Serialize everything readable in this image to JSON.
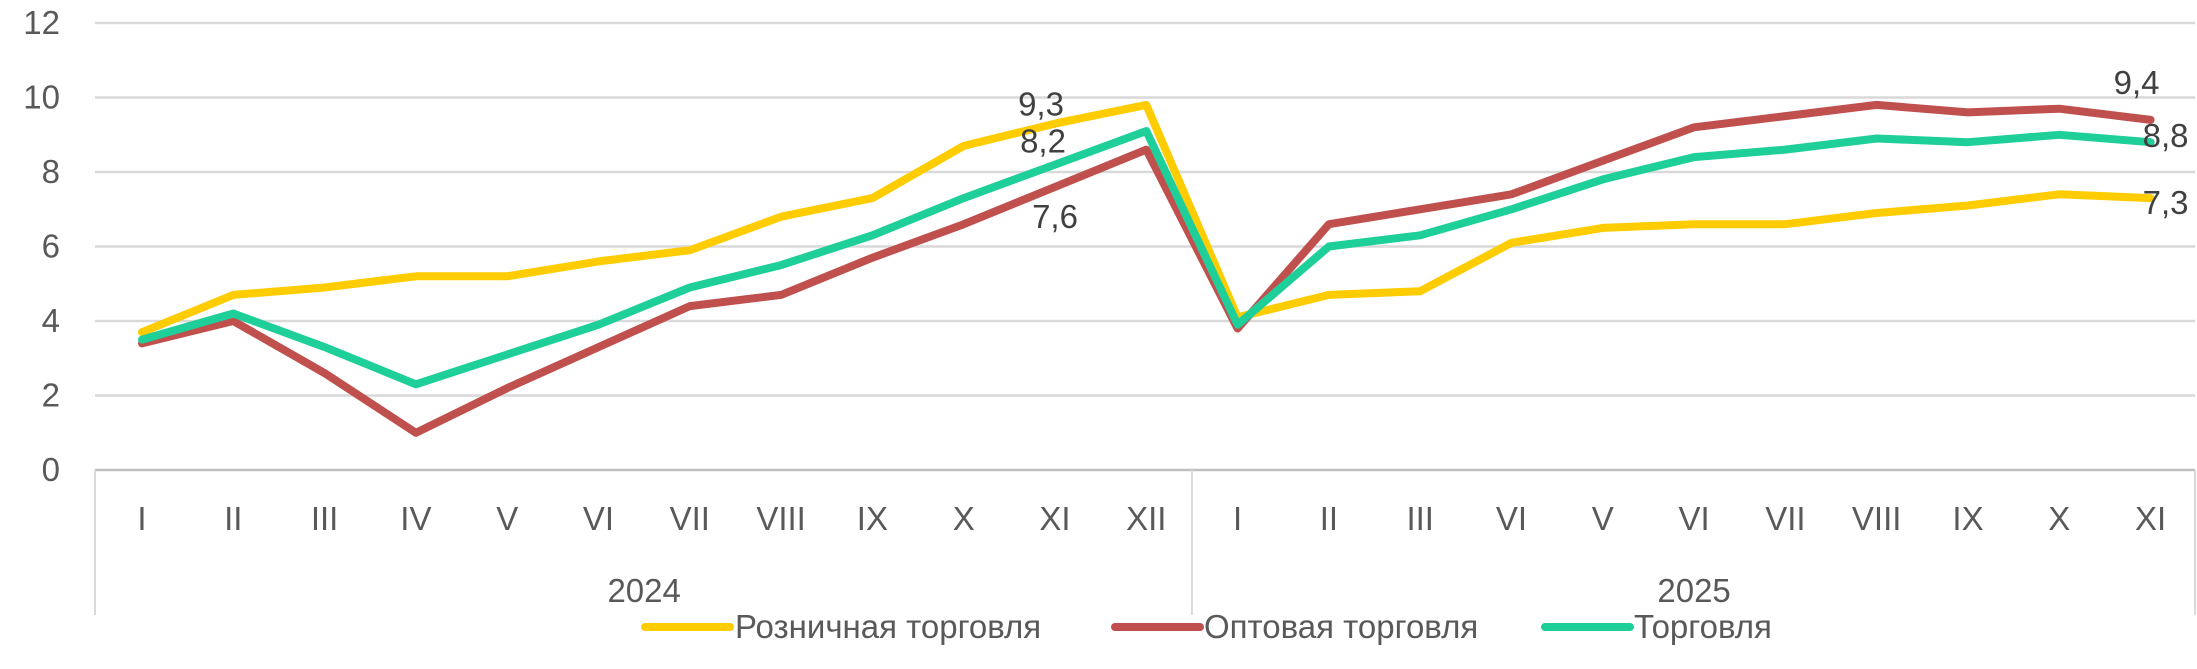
{
  "chart_data": {
    "type": "line",
    "years": [
      {
        "label": "2024",
        "months": [
          "I",
          "II",
          "III",
          "IV",
          "V",
          "VI",
          "VII",
          "VIII",
          "IX",
          "X",
          "XI",
          "XII"
        ]
      },
      {
        "label": "2025",
        "months": [
          "I",
          "II",
          "III",
          "VI",
          "V",
          "VI",
          "VII",
          "VIII",
          "IX",
          "X",
          "XI"
        ]
      }
    ],
    "ylim": [
      0,
      12
    ],
    "yticks": [
      "0",
      "2",
      "4",
      "6",
      "8",
      "10",
      "12"
    ],
    "grid": true,
    "legend_position": "bottom",
    "series": [
      {
        "name": "Розничная торговля",
        "color": "#FFCC00",
        "values": [
          3.7,
          4.7,
          4.9,
          5.2,
          5.2,
          5.6,
          5.9,
          6.8,
          7.3,
          8.7,
          9.3,
          9.8,
          4.1,
          4.7,
          4.8,
          6.1,
          6.5,
          6.6,
          6.6,
          6.9,
          7.1,
          7.4,
          7.3
        ]
      },
      {
        "name": "Оптовая торговля",
        "color": "#C0504D",
        "values": [
          3.4,
          4.0,
          2.6,
          1.0,
          2.2,
          3.3,
          4.4,
          4.7,
          5.7,
          6.6,
          7.6,
          8.6,
          3.8,
          6.6,
          7.0,
          7.4,
          8.3,
          9.2,
          9.5,
          9.8,
          9.6,
          9.7,
          9.4
        ]
      },
      {
        "name": "Торговля",
        "color": "#1ECF9A",
        "values": [
          3.5,
          4.2,
          3.3,
          2.3,
          3.1,
          3.9,
          4.9,
          5.5,
          6.3,
          7.3,
          8.2,
          9.1,
          3.9,
          6.0,
          6.3,
          7.0,
          7.8,
          8.4,
          8.6,
          8.9,
          8.8,
          9.0,
          8.8
        ]
      }
    ],
    "data_labels": [
      {
        "series": 0,
        "index": 10,
        "text": "9,3"
      },
      {
        "series": 2,
        "index": 10,
        "text": "8,2"
      },
      {
        "series": 1,
        "index": 10,
        "text": "7,6"
      },
      {
        "series": 1,
        "index": 22,
        "text": "9,4"
      },
      {
        "series": 2,
        "index": 22,
        "text": "8,8"
      },
      {
        "series": 0,
        "index": 22,
        "text": "7,3"
      }
    ]
  }
}
